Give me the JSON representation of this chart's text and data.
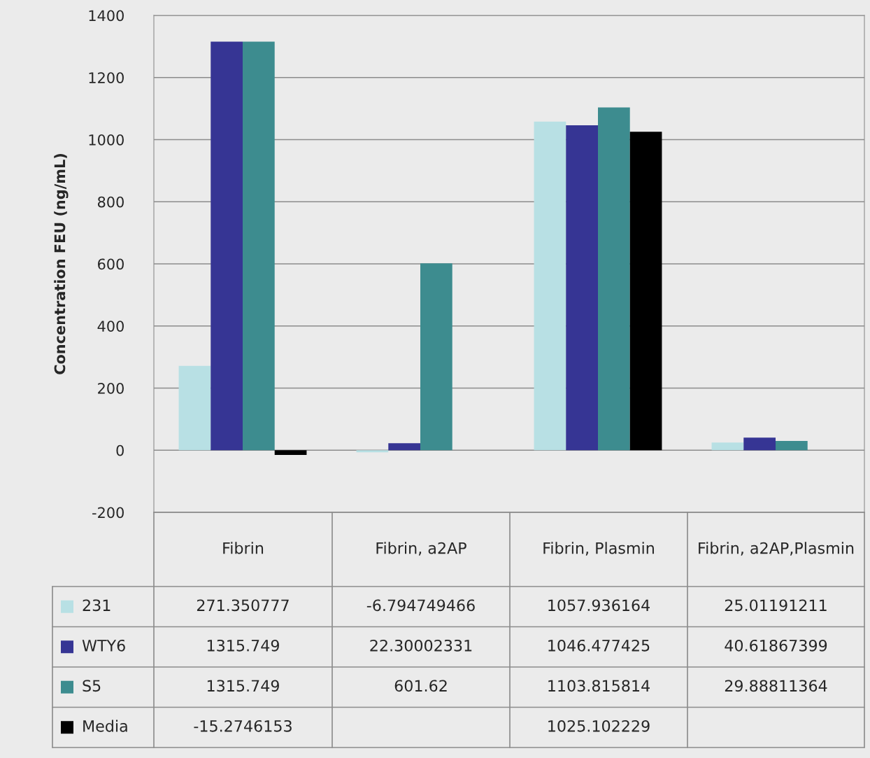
{
  "chart_data": {
    "type": "bar",
    "ylabel": "Concentration FEU (ng/mL)",
    "categories": [
      "Fibrin",
      "Fibrin, a2AP",
      "Fibrin, Plasmin",
      "Fibrin, a2AP,Plasmin"
    ],
    "series": [
      {
        "name": "231",
        "color": "#b8e0e4",
        "values": [
          271.350777,
          -6.794749466,
          1057.936164,
          25.01191211
        ]
      },
      {
        "name": "WTY6",
        "color": "#363594",
        "values": [
          1315.749,
          22.30002331,
          1046.477425,
          40.61867399
        ]
      },
      {
        "name": "S5",
        "color": "#3d8c8f",
        "values": [
          1315.749,
          601.62,
          1103.815814,
          29.88811364
        ]
      },
      {
        "name": "Media",
        "color": "#000000",
        "values": [
          -15.2746153,
          null,
          1025.102229,
          null
        ]
      }
    ],
    "ylim": [
      -200,
      1400
    ],
    "yticks": [
      -200,
      0,
      200,
      400,
      600,
      800,
      1000,
      1200,
      1400
    ],
    "grid": "y",
    "data_labels": true,
    "legend": "bottom left"
  }
}
